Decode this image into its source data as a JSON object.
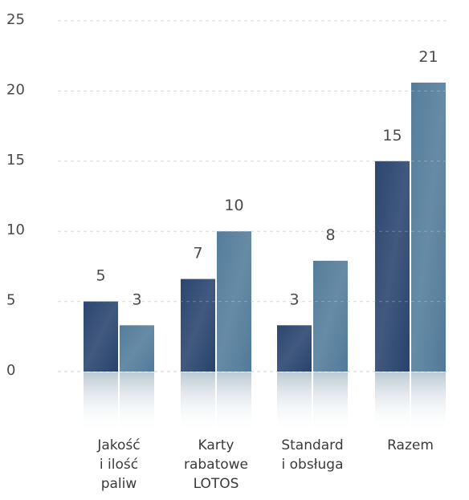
{
  "chart_data": {
    "type": "bar",
    "categories": [
      [
        "Jakość",
        "i ilość",
        "paliw"
      ],
      [
        "Karty",
        "rabatowe",
        "LOTOS"
      ],
      [
        "Standard",
        "i obsługa"
      ],
      [
        "Razem"
      ]
    ],
    "series": [
      {
        "values": [
          5,
          6.6,
          3.3,
          15
        ],
        "labels": [
          "5",
          "7",
          "3",
          "15"
        ],
        "color": "#1e3a66"
      },
      {
        "values": [
          3.3,
          10,
          7.9,
          20.6
        ],
        "labels": [
          "3",
          "10",
          "8",
          "21"
        ],
        "color": "#4a7595"
      }
    ],
    "yticks": [
      "0",
      "5",
      "10",
      "15",
      "20",
      "25"
    ],
    "ylim": [
      0,
      25
    ],
    "grid": true,
    "legend": "none",
    "xlabel": "",
    "ylabel": ""
  }
}
